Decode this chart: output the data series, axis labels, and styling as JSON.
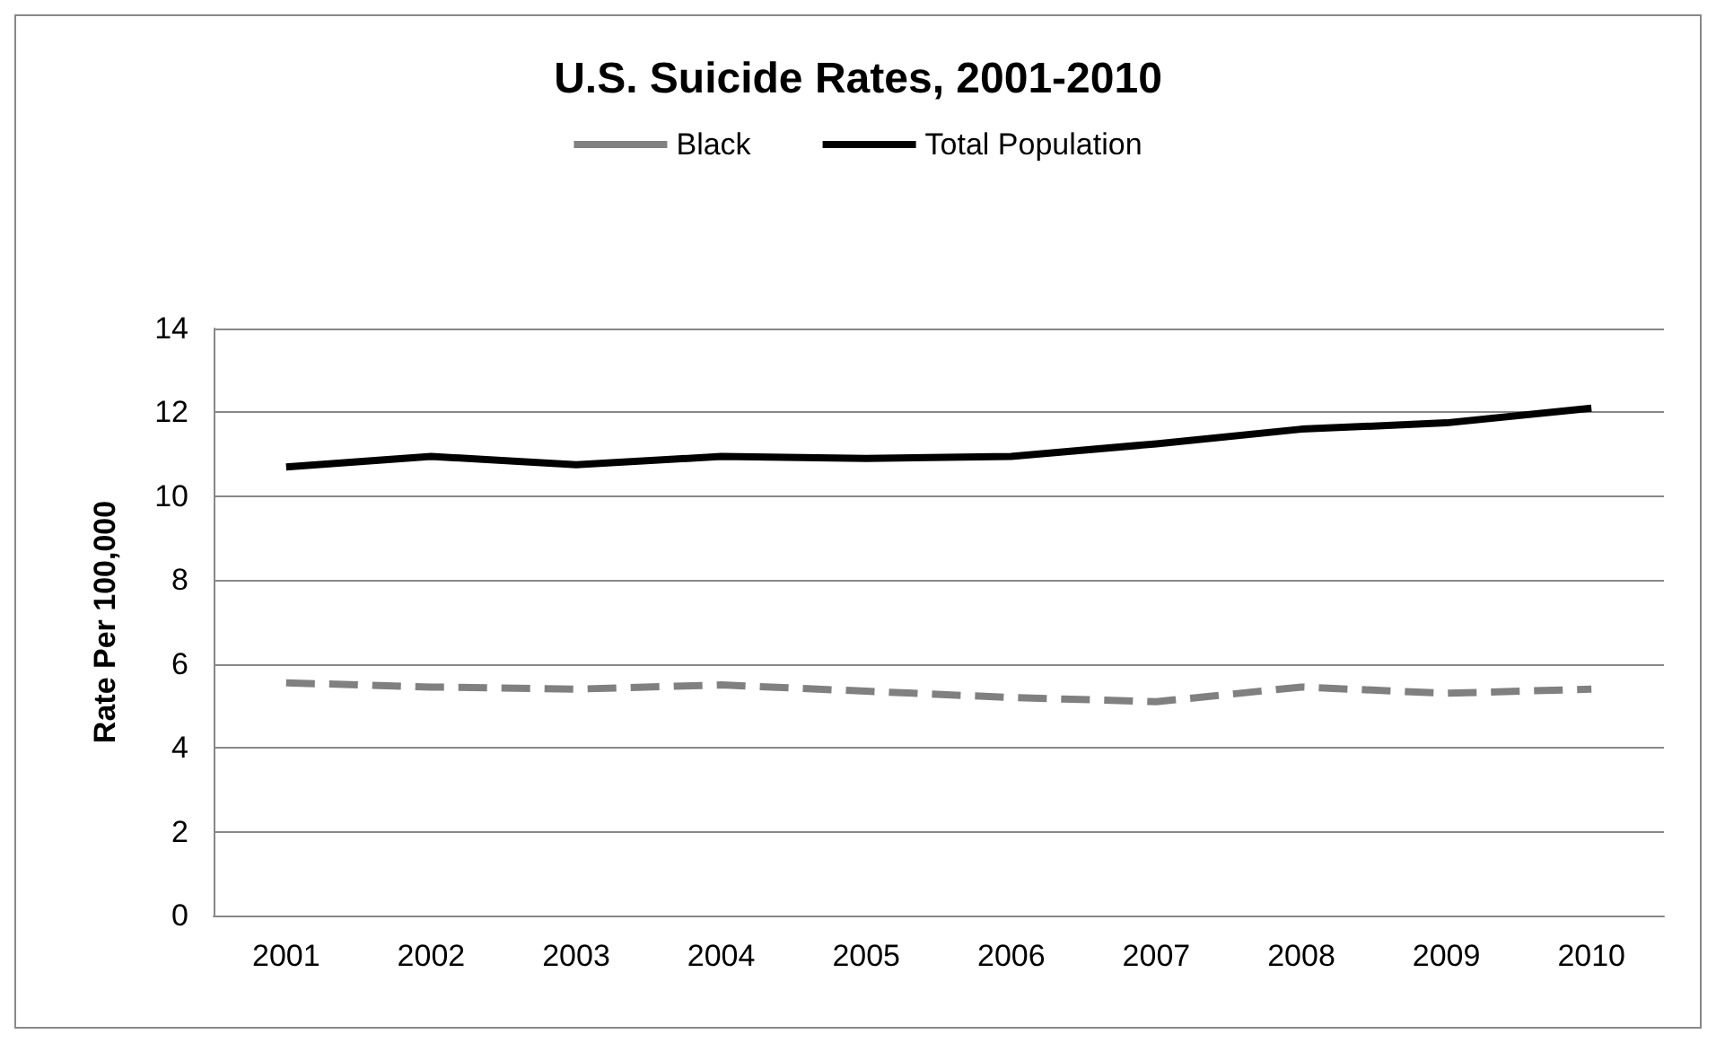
{
  "chart_data": {
    "type": "line",
    "title": "U.S. Suicide Rates, 2001-2010",
    "ylabel": "Rate Per 100,000",
    "categories": [
      "2001",
      "2002",
      "2003",
      "2004",
      "2005",
      "2006",
      "2007",
      "2008",
      "2009",
      "2010"
    ],
    "series": [
      {
        "name": "Black",
        "color": "#808080",
        "line_style": "dashed",
        "values": [
          5.55,
          5.45,
          5.4,
          5.5,
          5.35,
          5.2,
          5.1,
          5.45,
          5.3,
          5.4
        ]
      },
      {
        "name": "Total Population",
        "color": "#000000",
        "line_style": "solid",
        "values": [
          10.7,
          10.95,
          10.75,
          10.95,
          10.9,
          10.95,
          11.25,
          11.6,
          11.75,
          12.1
        ]
      }
    ],
    "ylim": [
      0,
      14
    ],
    "yticks": [
      0,
      2,
      4,
      6,
      8,
      10,
      12,
      14
    ],
    "grid": "y",
    "legend": "top",
    "marker": "none"
  }
}
